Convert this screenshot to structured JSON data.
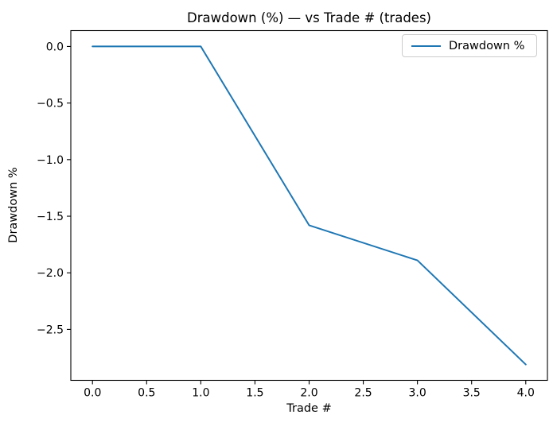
{
  "figure": {
    "background": "#ffffff",
    "text_color": "#000000",
    "spine_color": "#000000"
  },
  "chart_data": {
    "type": "line",
    "title": "Drawdown (%) — vs Trade # (trades)",
    "xlabel": "Trade #",
    "ylabel": "Drawdown %",
    "x": [
      0,
      1,
      2,
      3,
      4
    ],
    "series": [
      {
        "name": "Drawdown %",
        "values": [
          0.0,
          0.0,
          -1.58,
          -1.89,
          -2.81
        ],
        "color": "#1f77b4",
        "line_width": 2
      }
    ],
    "xlim": [
      -0.2,
      4.2
    ],
    "ylim": [
      -2.95,
      0.14
    ],
    "xticks": {
      "values": [
        0,
        0.5,
        1,
        1.5,
        2,
        2.5,
        3,
        3.5,
        4
      ],
      "labels": [
        "0.0",
        "0.5",
        "1.0",
        "1.5",
        "2.0",
        "2.5",
        "3.0",
        "3.5",
        "4.0"
      ]
    },
    "yticks": {
      "values": [
        0,
        -0.5,
        -1,
        -1.5,
        -2,
        -2.5
      ],
      "labels": [
        "0.0",
        "−0.5",
        "−1.0",
        "−1.5",
        "−2.0",
        "−2.5"
      ]
    },
    "grid": false,
    "legend": {
      "position": "upper right",
      "entries": [
        "Drawdown %"
      ]
    }
  }
}
